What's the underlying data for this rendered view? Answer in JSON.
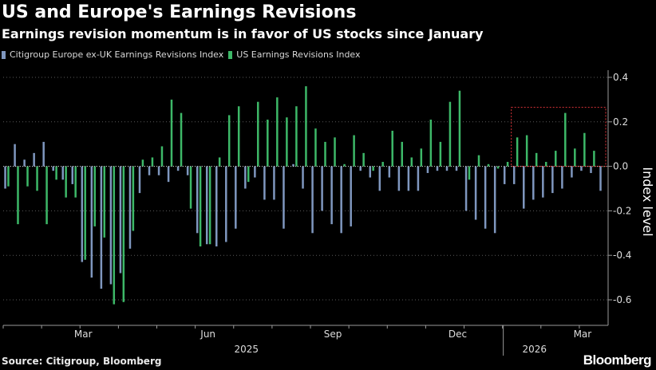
{
  "header": {
    "title": "US and Europe's Earnings Revisions",
    "subtitle": "Earnings revision momentum is in favor of US stocks since January"
  },
  "footer": {
    "source": "Source: Citigroup, Bloomberg",
    "brand": "Bloomberg"
  },
  "chart_data": {
    "type": "bar",
    "title": "US and Europe's Earnings Revisions",
    "subtitle": "Earnings revision momentum is in favor of US stocks since January",
    "ylabel": "Index level",
    "ylim": [
      -0.65,
      0.45
    ],
    "yticks": [
      {
        "value": 0.4,
        "label": "0.4"
      },
      {
        "value": 0.2,
        "label": "0.2"
      },
      {
        "value": 0.0,
        "label": "0.0"
      },
      {
        "value": -0.2,
        "label": "-0.2"
      },
      {
        "value": -0.4,
        "label": "-0.4"
      },
      {
        "value": -0.6,
        "label": "-0.6"
      }
    ],
    "xticks": [
      {
        "index": 8,
        "label": "Mar"
      },
      {
        "index": 21,
        "label": "Jun"
      },
      {
        "index": 34,
        "label": "Sep"
      },
      {
        "index": 47,
        "label": "Dec"
      },
      {
        "index": 60,
        "label": "Mar"
      }
    ],
    "year_labels": [
      {
        "index": 25,
        "label": "2025"
      },
      {
        "index": 55,
        "label": "2026"
      }
    ],
    "grid": true,
    "legend_position": "top-left",
    "colors": {
      "europe": "#7f97bf",
      "us": "#3db868",
      "highlight": "#e0343a"
    },
    "highlight_range": {
      "start_index": 53,
      "end_index": 63
    },
    "series": [
      {
        "name": "Citigroup Europe ex-UK Earnings Revisions Index",
        "color": "#7f97bf",
        "values": [
          -0.1,
          0.1,
          0.03,
          0.06,
          0.11,
          -0.02,
          -0.06,
          -0.08,
          -0.43,
          -0.5,
          -0.55,
          -0.53,
          -0.48,
          -0.37,
          -0.12,
          -0.04,
          -0.04,
          -0.07,
          -0.02,
          -0.04,
          -0.3,
          -0.35,
          -0.36,
          -0.34,
          -0.28,
          -0.1,
          -0.05,
          -0.15,
          -0.15,
          -0.28,
          0.01,
          -0.1,
          -0.3,
          -0.2,
          -0.26,
          -0.3,
          -0.27,
          -0.02,
          -0.05,
          -0.11,
          -0.05,
          -0.11,
          -0.11,
          -0.11,
          -0.03,
          -0.02,
          -0.02,
          -0.02,
          -0.2,
          -0.24,
          -0.28,
          -0.3,
          -0.08,
          -0.08,
          -0.19,
          -0.15,
          -0.14,
          -0.12,
          -0.1,
          -0.05,
          -0.02,
          -0.03,
          -0.11
        ]
      },
      {
        "name": "US Earnings Revisions Index",
        "color": "#3db868",
        "values": [
          -0.09,
          -0.26,
          -0.09,
          -0.11,
          -0.26,
          -0.06,
          -0.14,
          -0.14,
          -0.42,
          -0.27,
          -0.32,
          -0.62,
          -0.61,
          -0.29,
          0.03,
          0.04,
          0.09,
          0.3,
          0.24,
          -0.19,
          -0.36,
          -0.35,
          0.04,
          0.23,
          0.27,
          -0.07,
          0.29,
          0.21,
          0.31,
          0.22,
          0.27,
          0.36,
          0.17,
          0.11,
          0.13,
          0.01,
          0.14,
          0.06,
          -0.02,
          0.02,
          0.16,
          0.11,
          0.04,
          0.08,
          0.21,
          0.11,
          0.29,
          0.34,
          -0.06,
          0.05,
          0.01,
          -0.01,
          0.02,
          0.13,
          0.14,
          0.06,
          0.02,
          0.07,
          0.24,
          0.08,
          0.15,
          0.07,
          0.0
        ]
      }
    ]
  }
}
